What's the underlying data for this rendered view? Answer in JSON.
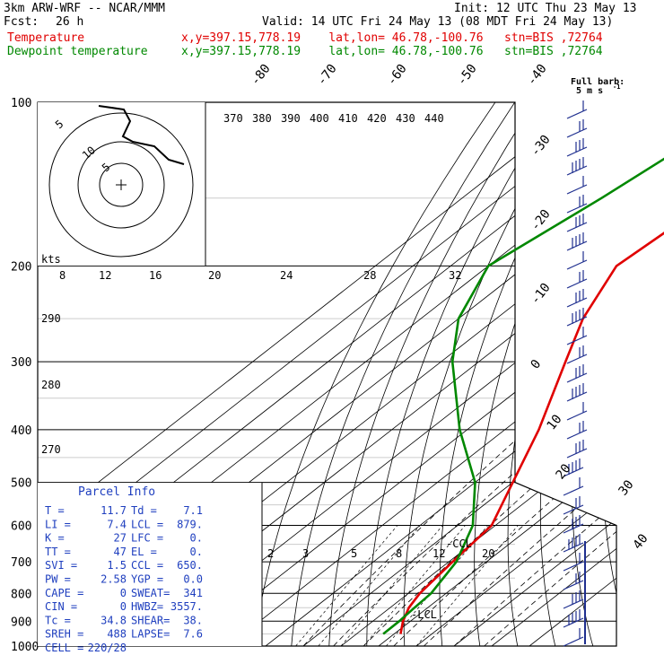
{
  "header": {
    "model": "3km ARW-WRF -- NCAR/MMM",
    "init": "Init: 12 UTC Thu 23 May 13",
    "fcst_label": "Fcst:",
    "fcst_value": "26 h",
    "valid": "Valid: 14 UTC Fri 24 May 13 (08 MDT Fri 24 May 13)",
    "temp_label": "Temperature",
    "temp_loc": "x,y=397.15,778.19    lat,lon= 46.78,-100.76   stn=BIS ,72764",
    "dew_label": "Dewpoint temperature",
    "dew_loc": "x,y=397.15,778.19    lat,lon= 46.78,-100.76   stn=BIS ,72764",
    "full_barb": "Full barb:",
    "barb_unit": "5 m s",
    "barb_exp": "-1"
  },
  "colors": {
    "temperature": "#e00000",
    "dewpoint": "#008800",
    "parcel_box": "#1f3fbf",
    "winds": "#1f2f8f"
  },
  "chart_data": {
    "type": "line",
    "diagram": "Skew-T log-P",
    "y_axis": {
      "scale": "log",
      "range": [
        1000,
        100
      ],
      "ticks": [
        100,
        200,
        300,
        400,
        500,
        600,
        700,
        800,
        900,
        1000
      ]
    },
    "isotherm_labels": [
      "-80",
      "-70",
      "-60",
      "-50",
      "-40",
      "-30",
      "-20",
      "-10",
      "0",
      "10",
      "20",
      "30",
      "40"
    ],
    "theta_labels_top": [
      "370",
      "380",
      "390",
      "400",
      "410",
      "420",
      "430",
      "440"
    ],
    "theta_labels_left": [
      "290",
      "280",
      "270"
    ],
    "mixing_ratio_labels": [
      "2",
      "3",
      "5",
      "8",
      "12",
      "20"
    ],
    "series": [
      {
        "name": "Temperature",
        "points": [
          [
            100,
            -52
          ],
          [
            150,
            -53
          ],
          [
            200,
            -56
          ],
          [
            250,
            -47
          ],
          [
            300,
            -37
          ],
          [
            400,
            -21
          ],
          [
            500,
            -10
          ],
          [
            600,
            -1
          ],
          [
            700,
            1
          ],
          [
            800,
            3
          ],
          [
            850,
            5
          ],
          [
            900,
            8
          ],
          [
            950,
            11.7
          ]
        ]
      },
      {
        "name": "Dewpoint temperature",
        "points": [
          [
            100,
            -75
          ],
          [
            150,
            -83
          ],
          [
            200,
            -90
          ],
          [
            250,
            -80
          ],
          [
            300,
            -67
          ],
          [
            400,
            -42
          ],
          [
            500,
            -20
          ],
          [
            600,
            -6
          ],
          [
            700,
            2
          ],
          [
            800,
            6
          ],
          [
            850,
            6.5
          ],
          [
            900,
            7
          ],
          [
            950,
            7.1
          ]
        ]
      }
    ],
    "annotations": {
      "ccl": "CCL",
      "lcl": "LCL"
    },
    "hodograph": {
      "units_label": "kts",
      "rings": [
        "5",
        "10",
        "5"
      ],
      "speed_labels": [
        "8",
        "12",
        "16",
        "20",
        "24",
        "28",
        "32"
      ]
    },
    "parcel_info": {
      "title": "Parcel Info",
      "rows": [
        [
          "T  =",
          "11.7",
          "Td =",
          "7.1"
        ],
        [
          "LI =",
          "7.4",
          "LCL =",
          "879."
        ],
        [
          "K  =",
          "27",
          "LFC =",
          "0."
        ],
        [
          "TT =",
          "47",
          "EL  =",
          "0."
        ],
        [
          "SVI =",
          "1.5",
          "CCL =",
          "650."
        ],
        [
          "PW =",
          "2.58",
          "YGP =",
          "0.0"
        ],
        [
          "CAPE =",
          "0",
          "SWEAT=",
          "341"
        ],
        [
          "CIN =",
          "0",
          "HWBZ=",
          "3557."
        ],
        [
          "Tc =",
          "34.8",
          "SHEAR=",
          "38."
        ],
        [
          "SREH =",
          "488",
          "LAPSE=",
          "7.6"
        ],
        [
          "CELL =",
          "220/28",
          "",
          ""
        ]
      ]
    }
  }
}
